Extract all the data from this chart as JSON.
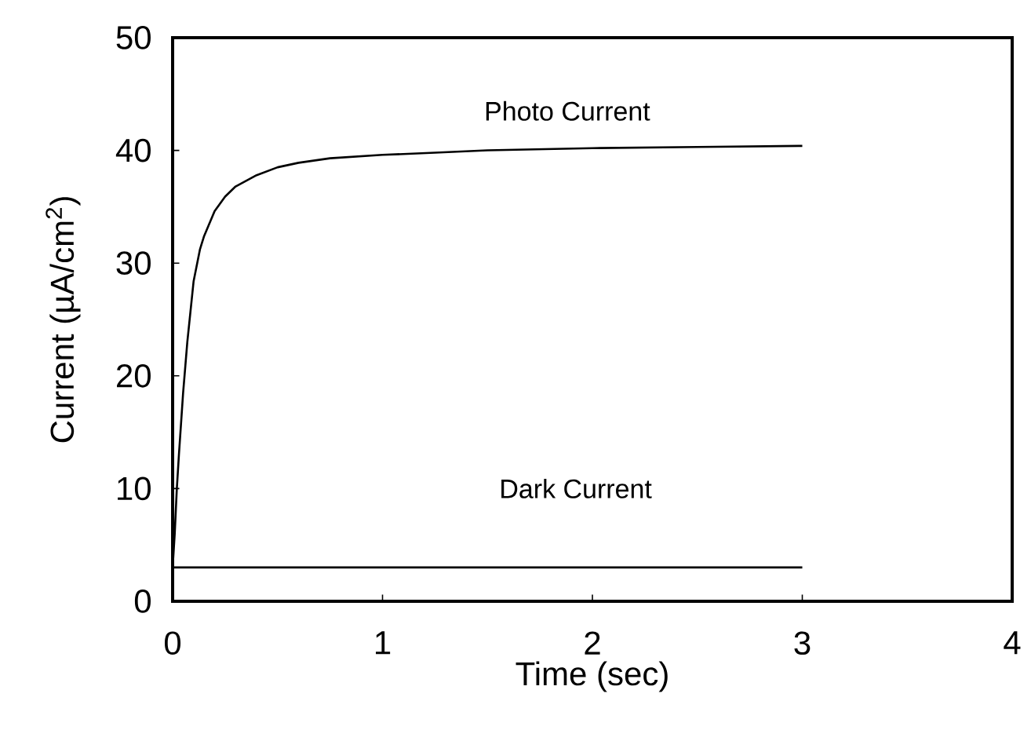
{
  "chart_data": {
    "type": "line",
    "xlabel": "Time (sec)",
    "ylabel": "Current (µA/cm$^{2}$)",
    "xlim": [
      0,
      4
    ],
    "ylim": [
      0,
      50
    ],
    "xticks": [
      0,
      1,
      2,
      3,
      4
    ],
    "yticks": [
      0,
      10,
      20,
      30,
      40,
      50
    ],
    "grid": false,
    "marker": "none",
    "line_style": "solid",
    "series": [
      {
        "name": "Photo Current",
        "color": "#000000",
        "x": [
          0,
          0.01,
          0.02,
          0.03,
          0.05,
          0.07,
          0.1,
          0.13,
          0.15,
          0.2,
          0.25,
          0.3,
          0.4,
          0.5,
          0.6,
          0.75,
          1,
          1.25,
          1.5,
          2,
          2.5,
          3
        ],
        "values": [
          3,
          6,
          10,
          13,
          18.5,
          23,
          28.4,
          31.2,
          32.4,
          34.6,
          35.9,
          36.8,
          37.8,
          38.5,
          38.9,
          39.3,
          39.6,
          39.8,
          40,
          40.2,
          40.3,
          40.4
        ]
      },
      {
        "name": "Dark Current",
        "color": "#000000",
        "x": [
          0,
          3
        ],
        "values": [
          3,
          3
        ]
      }
    ]
  }
}
